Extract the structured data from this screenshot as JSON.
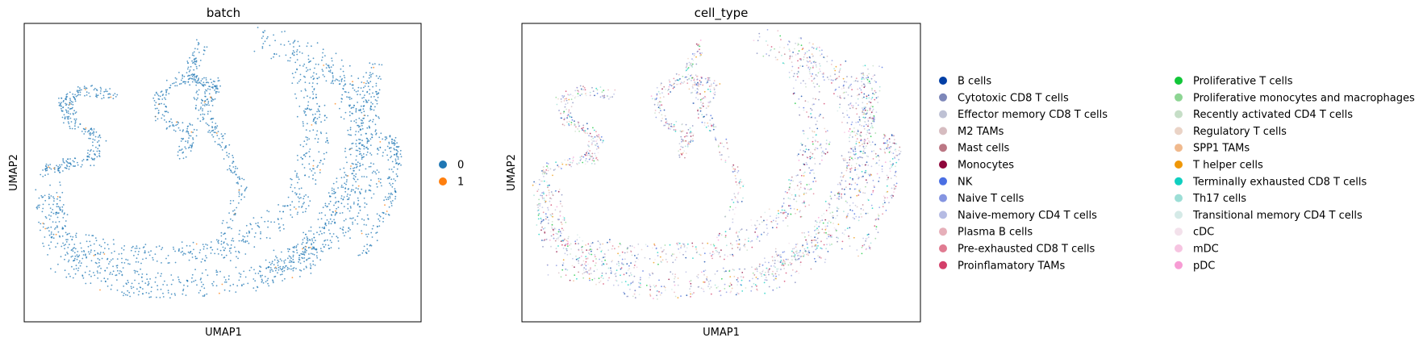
{
  "chart_data": [
    {
      "type": "scatter",
      "title": "batch",
      "xlabel": "UMAP1",
      "ylabel": "UMAP2",
      "grid": false,
      "legend_placement": "right",
      "series": [
        {
          "name": "0",
          "color": "#1f77b4"
        },
        {
          "name": "1",
          "color": "#ff7f0e"
        }
      ]
    },
    {
      "type": "scatter",
      "title": "cell_type",
      "xlabel": "UMAP1",
      "ylabel": "UMAP2",
      "grid": false,
      "legend_placement": "right",
      "series": [
        {
          "name": "B cells",
          "color": "#023fa5"
        },
        {
          "name": "Cytotoxic CD8 T cells",
          "color": "#7d87b9"
        },
        {
          "name": "Effector memory CD8 T cells",
          "color": "#bec1d4"
        },
        {
          "name": "M2 TAMs",
          "color": "#d6bcc0"
        },
        {
          "name": "Mast cells",
          "color": "#bb7784"
        },
        {
          "name": "Monocytes",
          "color": "#8e063b"
        },
        {
          "name": "NK",
          "color": "#4a6fe3"
        },
        {
          "name": "Naive T cells",
          "color": "#8595e1"
        },
        {
          "name": "Naive-memory CD4 T cells",
          "color": "#b5bbe3"
        },
        {
          "name": "Plasma B cells",
          "color": "#e6afb9"
        },
        {
          "name": "Pre-exhausted CD8 T cells",
          "color": "#e07b91"
        },
        {
          "name": "Proinflamatory TAMs",
          "color": "#d33f6a"
        },
        {
          "name": "Proliferative T cells",
          "color": "#11c638"
        },
        {
          "name": "Proliferative monocytes and macrophages",
          "color": "#8dd593"
        },
        {
          "name": "Recently activated CD4 T cells",
          "color": "#c6dec7"
        },
        {
          "name": "Regulatory T cells",
          "color": "#ead3c6"
        },
        {
          "name": "SPP1 TAMs",
          "color": "#f0b98d"
        },
        {
          "name": "T helper cells",
          "color": "#ef9708"
        },
        {
          "name": "Terminally exhausted CD8 T cells",
          "color": "#0fcfc0"
        },
        {
          "name": "Th17 cells",
          "color": "#9cded6"
        },
        {
          "name": "Transitional memory CD4 T cells",
          "color": "#d5eae7"
        },
        {
          "name": "cDC",
          "color": "#f3e1eb"
        },
        {
          "name": "mDC",
          "color": "#f6c4e1"
        },
        {
          "name": "pDC",
          "color": "#f79cd4"
        }
      ]
    }
  ]
}
